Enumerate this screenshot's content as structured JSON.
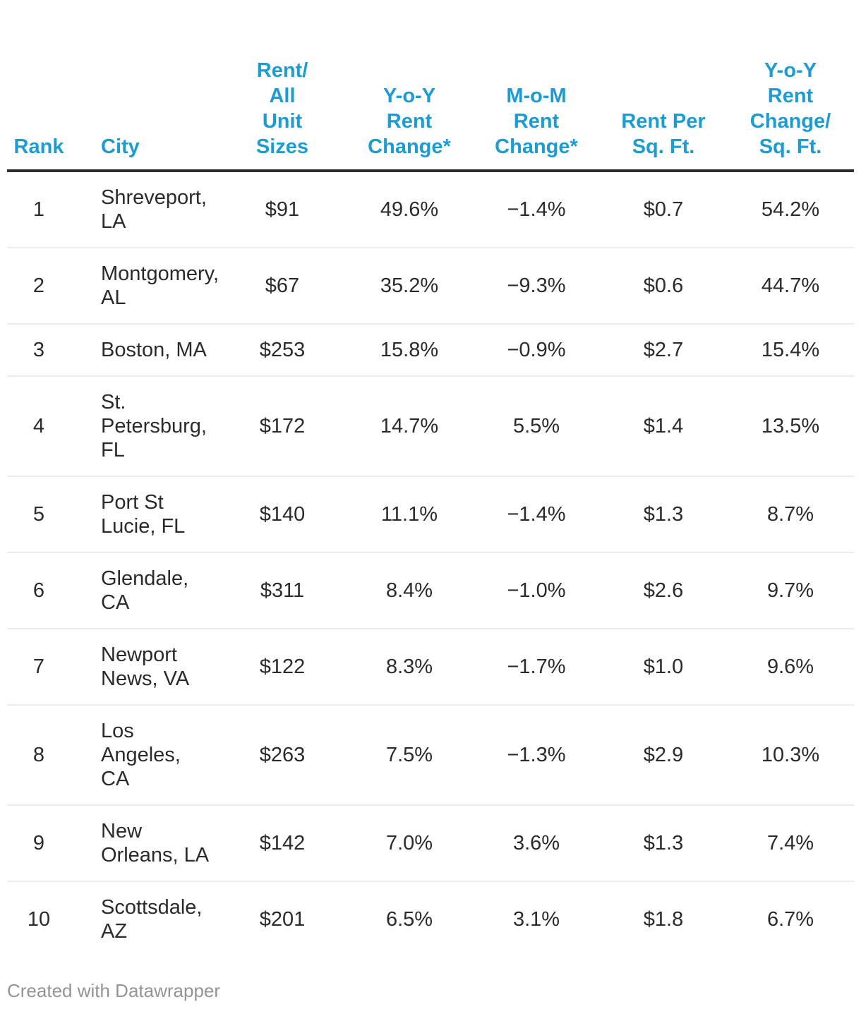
{
  "chart_data": {
    "type": "table",
    "columns": [
      "Rank",
      "City",
      "Rent/\nAll\nUnit\nSizes",
      "Y-o-Y\nRent\nChange*",
      "M-o-M\nRent\nChange*",
      "Rent Per\nSq. Ft.",
      "Y-o-Y\nRent\nChange/\nSq. Ft."
    ],
    "rows": [
      [
        "1",
        "Shreveport,\nLA",
        "$91",
        "49.6%",
        "−1.4%",
        "$0.7",
        "54.2%"
      ],
      [
        "2",
        "Montgomery,\nAL",
        "$67",
        "35.2%",
        "−9.3%",
        "$0.6",
        "44.7%"
      ],
      [
        "3",
        "Boston, MA",
        "$253",
        "15.8%",
        "−0.9%",
        "$2.7",
        "15.4%"
      ],
      [
        "4",
        "St.\nPetersburg,\nFL",
        "$172",
        "14.7%",
        "5.5%",
        "$1.4",
        "13.5%"
      ],
      [
        "5",
        "Port St\nLucie, FL",
        "$140",
        "11.1%",
        "−1.4%",
        "$1.3",
        "8.7%"
      ],
      [
        "6",
        "Glendale, CA",
        "$311",
        "8.4%",
        "−1.0%",
        "$2.6",
        "9.7%"
      ],
      [
        "7",
        "Newport\nNews, VA",
        "$122",
        "8.3%",
        "−1.7%",
        "$1.0",
        "9.6%"
      ],
      [
        "8",
        "Los Angeles,\nCA",
        "$263",
        "7.5%",
        "−1.3%",
        "$2.9",
        "10.3%"
      ],
      [
        "9",
        "New\nOrleans, LA",
        "$142",
        "7.0%",
        "3.6%",
        "$1.3",
        "7.4%"
      ],
      [
        "10",
        "Scottsdale,\nAZ",
        "$201",
        "6.5%",
        "3.1%",
        "$1.8",
        "6.7%"
      ]
    ],
    "colors": {
      "header_text": "#1d9cd2",
      "body_text": "#2b2b2b",
      "header_rule": "#2e2e2e",
      "row_divider": "#ebebeb",
      "background": "#ffffff",
      "credit_text": "#949494"
    },
    "layout_hints": {
      "numeric_alignment": "center",
      "city_alignment": "left",
      "grid": "horizontal-dividers-only"
    }
  },
  "footer": {
    "credit": "Created with Datawrapper"
  }
}
